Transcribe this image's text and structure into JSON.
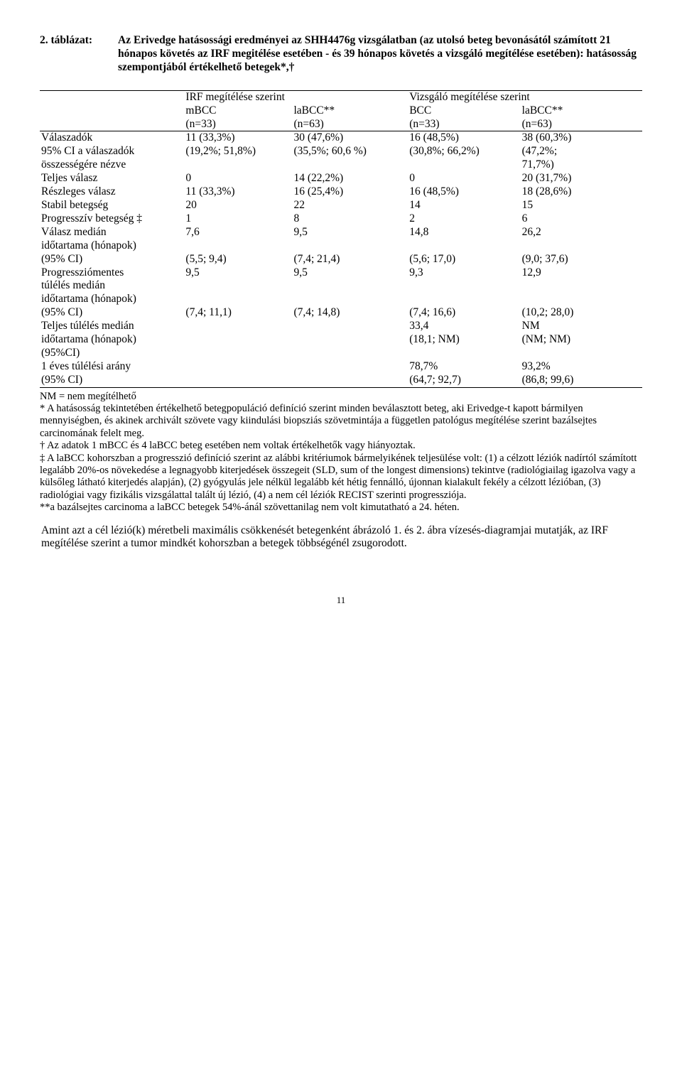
{
  "title_label": "2. táblázat:",
  "title_text": "Az Erivedge hatásossági eredményei az SHH4476g vizsgálatban (az utolsó beteg bevonásától számított 21 hónapos követés az IRF megitélése esetében - és 39 hónapos követés a vizsgáló megítélése esetében): hatásosság szempontjából értékelhető betegek*,†",
  "header_group_left": "IRF megítélése szerint",
  "header_group_right": "Vizsgáló megítélése szerint",
  "cols": {
    "c1h": "mBCC",
    "c1n": "(n=33)",
    "c2h": "laBCC**",
    "c2n": "(n=63)",
    "c3h": "BCC",
    "c3n": "(n=33)",
    "c4h": "laBCC**",
    "c4n": "(n=63)"
  },
  "rows": [
    {
      "l": "Válaszadók",
      "c1": "11 (33,3%)",
      "c2": "30 (47,6%)",
      "c3": "16 (48,5%)",
      "c4": "38 (60,3%)"
    },
    {
      "l": "95% CI a válaszadók",
      "c1": "(19,2%; 51,8%)",
      "c2": "(35,5%; 60,6 %)",
      "c3": "(30,8%; 66,2%)",
      "c4": "(47,2%;"
    },
    {
      "l": "összességére nézve",
      "c1": "",
      "c2": "",
      "c3": "",
      "c4": "71,7%)"
    },
    {
      "l": "Teljes válasz",
      "c1": "0",
      "c2": "14 (22,2%)",
      "c3": "0",
      "c4": "20 (31,7%)"
    },
    {
      "l": "Részleges válasz",
      "c1": "11 (33,3%)",
      "c2": "16 (25,4%)",
      "c3": "16 (48,5%)",
      "c4": "18 (28,6%)"
    },
    {
      "l": "Stabil betegség",
      "c1": "20",
      "c2": "22",
      "c3": "14",
      "c4": "15"
    },
    {
      "l": "Progresszív betegség ‡",
      "c1": "1",
      "c2": "8",
      "c3": "2",
      "c4": "6"
    },
    {
      "l": "Válasz medián",
      "c1": "7,6",
      "c2": "9,5",
      "c3": "14,8",
      "c4": "26,2"
    },
    {
      "l": "időtartama (hónapok)",
      "c1": "",
      "c2": "",
      "c3": "",
      "c4": ""
    },
    {
      "l": "(95% CI)",
      "c1": "(5,5; 9,4)",
      "c2": "(7,4; 21,4)",
      "c3": "(5,6; 17,0)",
      "c4": "(9,0; 37,6)"
    },
    {
      "l": "Progressziómentes",
      "c1": "9,5",
      "c2": "9,5",
      "c3": "9,3",
      "c4": "12,9"
    },
    {
      "l": "túlélés medián",
      "c1": "",
      "c2": "",
      "c3": "",
      "c4": ""
    },
    {
      "l": "időtartama (hónapok)",
      "c1": "",
      "c2": "",
      "c3": "",
      "c4": ""
    },
    {
      "l": "(95% CI)",
      "c1": "(7,4; 11,1)",
      "c2": "(7,4; 14,8)",
      "c3": "(7,4; 16,6)",
      "c4": "(10,2; 28,0)"
    },
    {
      "l": "Teljes túlélés medián",
      "c1": "",
      "c2": "",
      "c3": "33,4",
      "c4": "NM"
    },
    {
      "l": "időtartama (hónapok)",
      "c1": "",
      "c2": "",
      "c3": "(18,1; NM)",
      "c4": "(NM; NM)"
    },
    {
      "l": "(95%CI)",
      "c1": "",
      "c2": "",
      "c3": "",
      "c4": ""
    },
    {
      "l": "1 éves túlélési arány",
      "c1": "",
      "c2": "",
      "c3": "78,7%",
      "c4": "93,2%"
    },
    {
      "l": "(95% CI)",
      "c1": "",
      "c2": "",
      "c3": "(64,7; 92,7)",
      "c4": "(86,8; 99,6)"
    }
  ],
  "footnotes": [
    "NM = nem megítélhető",
    "* A hatásosság tekintetében értékelhető betegpopuláció definíció szerint minden beválasztott beteg, aki Erivedge-t kapott bármilyen mennyiségben, és akinek archivált szövete vagy kiindulási biopsziás szövetmintája a független patológus megítélése szerint bazálsejtes carcinomának felelt meg.",
    "† Az adatok 1 mBCC és 4 laBCC beteg esetében nem voltak értékelhetők vagy hiányoztak.",
    "‡ A laBCC kohorszban a progresszió definíció szerint az alábbi kritériumok bármelyikének teljesülése volt: (1) a célzott léziók nadírtól számított legalább 20%-os növekedése a legnagyobb kiterjedések összegeit (SLD, sum of the longest dimensions) tekintve (radiológiailag igazolva vagy a külsőleg látható kiterjedés alapján), (2) gyógyulás jele nélkül legalább két hétig fennálló, újonnan kialakult fekély a célzott lézióban, (3) radiológiai vagy fizikális vizsgálattal talált új lézió, (4) a nem cél léziók RECIST szerinti progressziója.",
    "**a bazálsejtes carcinoma a laBCC betegek 54%-ánál szövettanilag nem volt kimutatható a 24. héten."
  ],
  "closing_para": "Amint azt a cél lézió(k) méretbeli maximális csökkenését betegenként ábrázoló 1. és 2. ábra vízesés-diagramjai mutatják, az IRF megítélése szerint a tumor mindkét kohorszban a betegek többségénél zsugorodott.",
  "page_number": "11"
}
